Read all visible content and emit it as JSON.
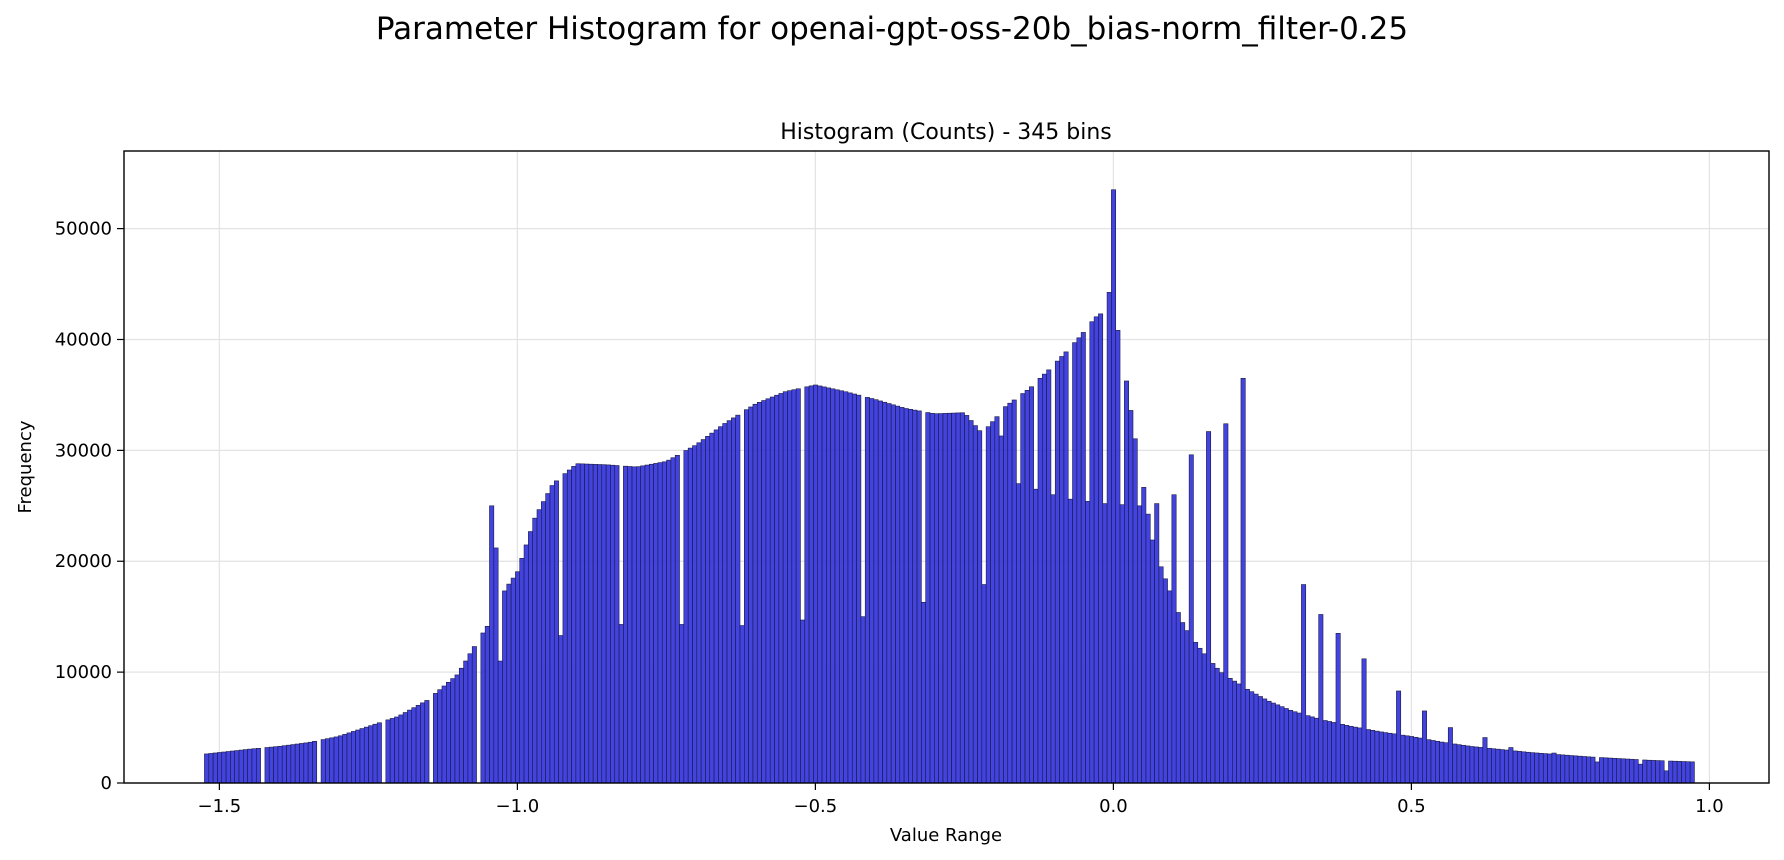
{
  "chart_data": {
    "type": "bar",
    "title": "Parameter Histogram for openai-gpt-oss-20b_bias-norm_filter-0.25",
    "subtitle": "Histogram (Counts) - 345 bins",
    "xlabel": "Value Range",
    "ylabel": "Frequency",
    "xlim": [
      -1.66,
      1.1
    ],
    "ylim": [
      0,
      57000
    ],
    "x_ticks": [
      -1.5,
      -1.0,
      -0.5,
      0.0,
      0.5,
      1.0
    ],
    "x_tick_labels": [
      "−1.5",
      "−1.0",
      "−0.5",
      "0.0",
      "0.5",
      "1.0"
    ],
    "y_ticks": [
      0,
      10000,
      20000,
      30000,
      40000,
      50000
    ],
    "y_tick_labels": [
      "0",
      "10000",
      "20000",
      "30000",
      "40000",
      "50000"
    ],
    "grid": true,
    "bar_color": "#3333dd",
    "edge_color": "#1a1a40",
    "bins": {
      "count": 345,
      "start": -1.525,
      "end": 0.975,
      "width": 0.007246
    },
    "anchors": [
      [
        -1.525,
        2600
      ],
      [
        -1.45,
        3050
      ],
      [
        -1.4,
        3300
      ],
      [
        -1.35,
        3650
      ],
      [
        -1.3,
        4200
      ],
      [
        -1.25,
        5100
      ],
      [
        -1.2,
        6000
      ],
      [
        -1.15,
        7500
      ],
      [
        -1.1,
        9800
      ],
      [
        -1.07,
        12500
      ],
      [
        -1.04,
        15000
      ],
      [
        -1.02,
        17500
      ],
      [
        -1.0,
        19000
      ],
      [
        -0.97,
        24000
      ],
      [
        -0.94,
        27000
      ],
      [
        -0.9,
        28800
      ],
      [
        -0.85,
        28700
      ],
      [
        -0.8,
        28500
      ],
      [
        -0.75,
        29000
      ],
      [
        -0.7,
        30500
      ],
      [
        -0.65,
        32500
      ],
      [
        -0.6,
        34200
      ],
      [
        -0.55,
        35300
      ],
      [
        -0.5,
        35900
      ],
      [
        -0.45,
        35300
      ],
      [
        -0.4,
        34600
      ],
      [
        -0.35,
        33800
      ],
      [
        -0.3,
        33300
      ],
      [
        -0.25,
        33400
      ],
      [
        -0.22,
        31500
      ],
      [
        -0.18,
        34000
      ],
      [
        -0.14,
        35600
      ],
      [
        -0.1,
        37700
      ],
      [
        -0.06,
        40000
      ],
      [
        -0.03,
        42000
      ],
      [
        -0.008,
        42800
      ],
      [
        0.0,
        54000
      ],
      [
        0.008,
        40000
      ],
      [
        0.02,
        37000
      ],
      [
        0.035,
        31500
      ],
      [
        0.05,
        27000
      ],
      [
        0.065,
        22000
      ],
      [
        0.08,
        19500
      ],
      [
        0.1,
        16500
      ],
      [
        0.12,
        14000
      ],
      [
        0.15,
        11800
      ],
      [
        0.18,
        10000
      ],
      [
        0.22,
        8600
      ],
      [
        0.26,
        7400
      ],
      [
        0.3,
        6500
      ],
      [
        0.35,
        5700
      ],
      [
        0.4,
        5100
      ],
      [
        0.45,
        4600
      ],
      [
        0.5,
        4200
      ],
      [
        0.55,
        3700
      ],
      [
        0.6,
        3300
      ],
      [
        0.7,
        2750
      ],
      [
        0.8,
        2350
      ],
      [
        0.9,
        2050
      ],
      [
        0.975,
        1900
      ]
    ],
    "bin_overrides": {
      "13": 0,
      "26": 0,
      "41": 0,
      "52": 0,
      "63": 0,
      "66": 25000,
      "67": 21200,
      "68": 11000,
      "82": 13300,
      "96": 14300,
      "110": 14300,
      "124": 14200,
      "138": 14700,
      "152": 15000,
      "166": 16300,
      "180": 17900,
      "184": 31300,
      "188": 27000,
      "192": 26500,
      "196": 26000,
      "200": 25600,
      "204": 25400,
      "208": 25200,
      "212": 25100,
      "216": 25000,
      "220": 25200,
      "224": 26000,
      "228": 29600,
      "232": 31700,
      "236": 32400,
      "240": 36500,
      "254": 17900,
      "258": 15200,
      "262": 13500,
      "268": 11200,
      "276": 8300,
      "282": 6500,
      "288": 5000,
      "296": 4100,
      "302": 3200,
      "312": 2700,
      "322": 1900,
      "332": 1700,
      "338": 1100
    }
  }
}
